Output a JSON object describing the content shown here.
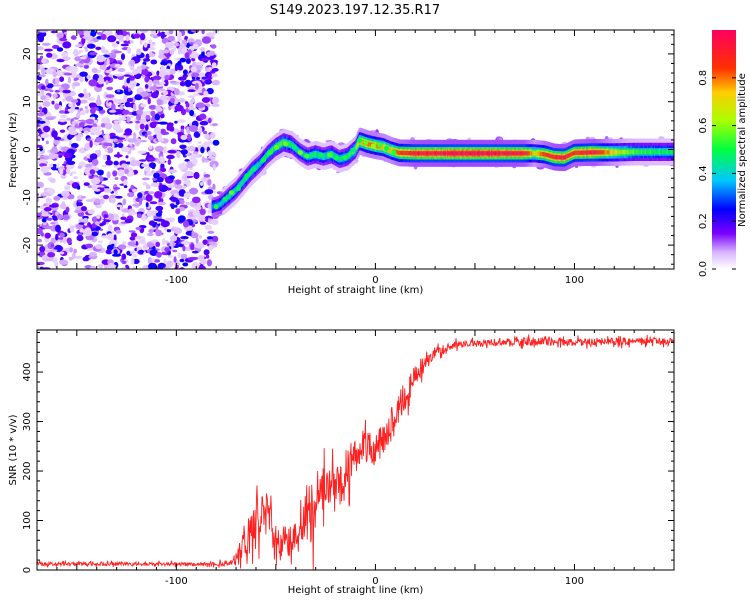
{
  "title": "S149.2023.197.12.35.R17",
  "colors": {
    "snr_line": "#ff2020",
    "axis": "#000000",
    "background": "#ffffff"
  },
  "chart_data": [
    {
      "type": "heatmap",
      "title": "S149.2023.197.12.35.R17",
      "xlabel": "Height of straight line (km)",
      "ylabel": "Frequency (Hz)",
      "xlim": [
        -170,
        150
      ],
      "ylim": [
        -25,
        25
      ],
      "xticks": [
        -100,
        0,
        100
      ],
      "yticks": [
        -20,
        -10,
        0,
        10,
        20
      ],
      "noise_region_x": [
        -170,
        -80
      ],
      "ridge": {
        "x": [
          -82,
          -78,
          -74,
          -70,
          -66,
          -62,
          -58,
          -54,
          -50,
          -46,
          -42,
          -38,
          -34,
          -30,
          -26,
          -22,
          -18,
          -14,
          -10,
          -8,
          -4,
          0,
          4,
          8,
          12,
          20,
          40,
          60,
          75,
          80,
          85,
          90,
          95,
          100,
          110,
          120,
          130,
          140,
          150
        ],
        "y": [
          -12,
          -11.5,
          -10,
          -8.5,
          -6.5,
          -4.5,
          -3,
          -1,
          0.5,
          1.5,
          1,
          -0.5,
          -1.5,
          -1,
          -1.5,
          -1,
          -2,
          -1.5,
          0,
          1.8,
          1.2,
          0.8,
          0.5,
          -0.2,
          -0.7,
          -0.8,
          -0.8,
          -0.8,
          -0.8,
          -0.8,
          -1,
          -1.6,
          -1.7,
          -0.7,
          -0.6,
          -0.6,
          -0.5,
          -0.5,
          -0.5
        ],
        "amplitude": [
          0.35,
          0.4,
          0.45,
          0.45,
          0.5,
          0.5,
          0.45,
          0.5,
          0.55,
          0.55,
          0.5,
          0.45,
          0.45,
          0.5,
          0.45,
          0.5,
          0.45,
          0.5,
          0.6,
          0.75,
          0.8,
          0.8,
          0.75,
          0.75,
          0.85,
          0.95,
          0.98,
          0.98,
          0.95,
          0.7,
          0.85,
          0.95,
          0.95,
          0.9,
          0.95,
          0.7,
          0.55,
          0.5,
          0.5
        ]
      },
      "colorbar": {
        "label": "Normalized spectral amplitude",
        "range": [
          0,
          1
        ],
        "ticks": [
          "0.0",
          "0.2",
          "0.4",
          "0.6",
          "0.8"
        ]
      }
    },
    {
      "type": "line",
      "xlabel": "Height of straight line (km)",
      "ylabel": "SNR (10 * v/v)",
      "xlim": [
        -170,
        150
      ],
      "ylim": [
        0,
        485
      ],
      "xticks": [
        -100,
        0,
        100
      ],
      "yticks": [
        0,
        100,
        200,
        300,
        400
      ],
      "series": [
        {
          "name": "SNR",
          "x": [
            -170,
            -120,
            -80,
            -72,
            -68,
            -64,
            -60,
            -56,
            -52,
            -48,
            -44,
            -40,
            -36,
            -32,
            -28,
            -24,
            -20,
            -16,
            -12,
            -8,
            -4,
            0,
            4,
            8,
            12,
            16,
            20,
            25,
            30,
            40,
            60,
            80,
            100,
            120,
            150
          ],
          "values": [
            12,
            12,
            12,
            15,
            40,
            60,
            100,
            130,
            90,
            45,
            50,
            80,
            120,
            110,
            150,
            180,
            160,
            190,
            220,
            240,
            250,
            240,
            270,
            290,
            330,
            360,
            390,
            420,
            440,
            455,
            460,
            462,
            460,
            462,
            462
          ],
          "noise_amplitude": [
            5,
            5,
            5,
            10,
            30,
            50,
            70,
            60,
            50,
            40,
            40,
            60,
            80,
            90,
            80,
            60,
            60,
            70,
            60,
            50,
            50,
            50,
            50,
            50,
            45,
            40,
            35,
            25,
            15,
            10,
            10,
            12,
            10,
            10,
            10
          ]
        }
      ]
    }
  ]
}
